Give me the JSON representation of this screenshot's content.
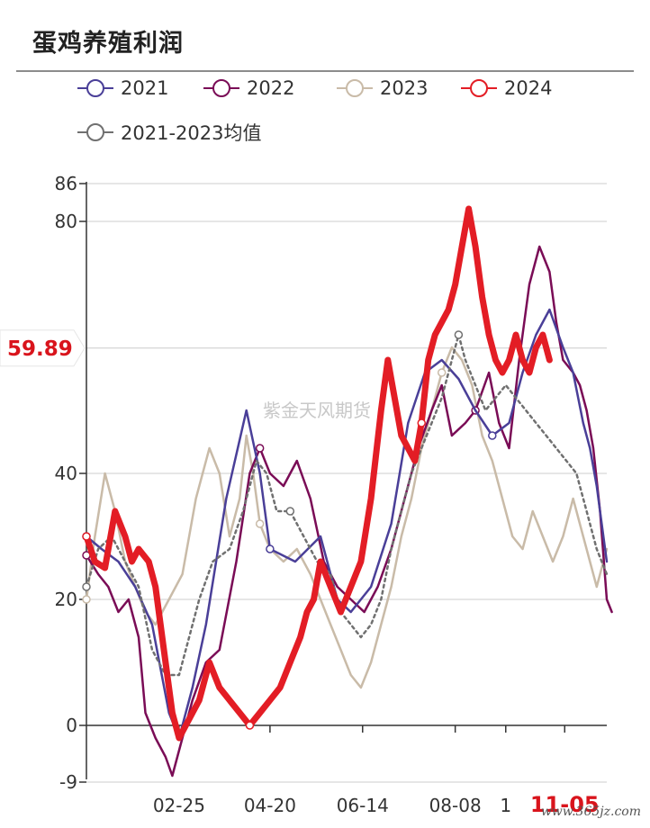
{
  "header": {
    "title": "蛋鸡养殖利润"
  },
  "watermark": "紫金天风期货",
  "site_mark": "www.365jz.com",
  "colors": {
    "s2021": "#4a3f98",
    "s2022": "#7a0c56",
    "s2023": "#c9bba8",
    "s2024": "#e31d25",
    "avg": "#707070",
    "highlight": "#d9141c"
  },
  "chart_data": {
    "type": "line",
    "title": "蛋鸡养殖利润",
    "xlabel": "",
    "ylabel": "",
    "ylim": [
      -9,
      86
    ],
    "yticks": [
      -9,
      0,
      20,
      40,
      80,
      86
    ],
    "highlight_value": "59.89",
    "highlight_y": 59.89,
    "xlim": [
      1,
      310
    ],
    "xticks": [
      {
        "label": "02-25",
        "x": 56
      },
      {
        "label": "04-20",
        "x": 110
      },
      {
        "label": "06-14",
        "x": 165
      },
      {
        "label": "08-08",
        "x": 220
      },
      {
        "label": "1",
        "x": 250
      },
      {
        "label": "11-05",
        "x": 285,
        "highlight": true
      }
    ],
    "grid": true,
    "legend_position": "top-left",
    "series": [
      {
        "name": "2021",
        "points": [
          [
            1,
            30
          ],
          [
            10,
            28
          ],
          [
            20,
            26
          ],
          [
            30,
            22
          ],
          [
            40,
            16
          ],
          [
            50,
            2
          ],
          [
            56,
            -2
          ],
          [
            64,
            6
          ],
          [
            72,
            16
          ],
          [
            84,
            36
          ],
          [
            96,
            50
          ],
          [
            104,
            40
          ],
          [
            110,
            28
          ],
          [
            125,
            26
          ],
          [
            140,
            30
          ],
          [
            150,
            20
          ],
          [
            158,
            18
          ],
          [
            170,
            22
          ],
          [
            182,
            32
          ],
          [
            192,
            48
          ],
          [
            202,
            56
          ],
          [
            212,
            58
          ],
          [
            222,
            55
          ],
          [
            232,
            50
          ],
          [
            242,
            46
          ],
          [
            252,
            48
          ],
          [
            260,
            56
          ],
          [
            268,
            62
          ],
          [
            276,
            66
          ],
          [
            284,
            60
          ],
          [
            290,
            56
          ],
          [
            296,
            48
          ],
          [
            300,
            44
          ],
          [
            304,
            38
          ],
          [
            306,
            34
          ],
          [
            310,
            26
          ]
        ]
      },
      {
        "name": "2022",
        "points": [
          [
            1,
            27
          ],
          [
            8,
            24
          ],
          [
            14,
            22
          ],
          [
            20,
            18
          ],
          [
            26,
            20
          ],
          [
            32,
            14
          ],
          [
            36,
            2
          ],
          [
            42,
            -2
          ],
          [
            48,
            -5
          ],
          [
            52,
            -8
          ],
          [
            58,
            -2
          ],
          [
            64,
            4
          ],
          [
            72,
            10
          ],
          [
            80,
            12
          ],
          [
            90,
            26
          ],
          [
            98,
            40
          ],
          [
            104,
            44
          ],
          [
            110,
            40
          ],
          [
            118,
            38
          ],
          [
            126,
            42
          ],
          [
            134,
            36
          ],
          [
            142,
            26
          ],
          [
            150,
            22
          ],
          [
            158,
            20
          ],
          [
            166,
            18
          ],
          [
            174,
            22
          ],
          [
            182,
            28
          ],
          [
            190,
            36
          ],
          [
            198,
            44
          ],
          [
            206,
            50
          ],
          [
            212,
            54
          ],
          [
            218,
            46
          ],
          [
            226,
            48
          ],
          [
            232,
            50
          ],
          [
            240,
            56
          ],
          [
            246,
            48
          ],
          [
            252,
            44
          ],
          [
            258,
            58
          ],
          [
            264,
            70
          ],
          [
            270,
            76
          ],
          [
            276,
            72
          ],
          [
            280,
            64
          ],
          [
            284,
            58
          ],
          [
            290,
            56
          ],
          [
            294,
            54
          ],
          [
            298,
            50
          ],
          [
            302,
            44
          ],
          [
            306,
            34
          ],
          [
            310,
            20
          ],
          [
            313,
            18
          ]
        ]
      },
      {
        "name": "2023",
        "points": [
          [
            1,
            20
          ],
          [
            6,
            30
          ],
          [
            12,
            40
          ],
          [
            18,
            34
          ],
          [
            24,
            26
          ],
          [
            30,
            22
          ],
          [
            36,
            18
          ],
          [
            42,
            16
          ],
          [
            50,
            20
          ],
          [
            58,
            24
          ],
          [
            66,
            36
          ],
          [
            74,
            44
          ],
          [
            80,
            40
          ],
          [
            86,
            30
          ],
          [
            92,
            36
          ],
          [
            96,
            46
          ],
          [
            100,
            40
          ],
          [
            104,
            32
          ],
          [
            110,
            28
          ],
          [
            118,
            26
          ],
          [
            126,
            28
          ],
          [
            134,
            24
          ],
          [
            140,
            20
          ],
          [
            146,
            16
          ],
          [
            152,
            12
          ],
          [
            158,
            8
          ],
          [
            164,
            6
          ],
          [
            170,
            10
          ],
          [
            176,
            16
          ],
          [
            182,
            22
          ],
          [
            188,
            30
          ],
          [
            194,
            36
          ],
          [
            200,
            44
          ],
          [
            206,
            50
          ],
          [
            212,
            56
          ],
          [
            218,
            60
          ],
          [
            224,
            58
          ],
          [
            230,
            54
          ],
          [
            236,
            46
          ],
          [
            242,
            42
          ],
          [
            248,
            36
          ],
          [
            254,
            30
          ],
          [
            260,
            28
          ],
          [
            266,
            34
          ],
          [
            272,
            30
          ],
          [
            278,
            26
          ],
          [
            284,
            30
          ],
          [
            290,
            36
          ],
          [
            296,
            30
          ],
          [
            300,
            26
          ],
          [
            304,
            22
          ],
          [
            310,
            28
          ]
        ]
      },
      {
        "name": "2024",
        "points": [
          [
            1,
            30
          ],
          [
            6,
            26
          ],
          [
            12,
            25
          ],
          [
            18,
            34
          ],
          [
            24,
            30
          ],
          [
            28,
            26
          ],
          [
            32,
            28
          ],
          [
            38,
            26
          ],
          [
            42,
            22
          ],
          [
            48,
            10
          ],
          [
            52,
            2
          ],
          [
            56,
            -2
          ],
          [
            60,
            0
          ],
          [
            64,
            2
          ],
          [
            68,
            4
          ],
          [
            74,
            10
          ],
          [
            80,
            6
          ],
          [
            86,
            4
          ],
          [
            92,
            2
          ],
          [
            98,
            0
          ],
          [
            104,
            2
          ],
          [
            110,
            4
          ],
          [
            116,
            6
          ],
          [
            122,
            10
          ],
          [
            128,
            14
          ],
          [
            132,
            18
          ],
          [
            136,
            20
          ],
          [
            140,
            26
          ],
          [
            146,
            22
          ],
          [
            152,
            18
          ],
          [
            158,
            22
          ],
          [
            164,
            26
          ],
          [
            170,
            36
          ],
          [
            176,
            50
          ],
          [
            180,
            58
          ],
          [
            184,
            52
          ],
          [
            188,
            46
          ],
          [
            192,
            44
          ],
          [
            196,
            42
          ],
          [
            200,
            48
          ],
          [
            204,
            58
          ],
          [
            208,
            62
          ],
          [
            212,
            64
          ],
          [
            216,
            66
          ],
          [
            220,
            70
          ],
          [
            224,
            76
          ],
          [
            228,
            82
          ],
          [
            232,
            76
          ],
          [
            236,
            68
          ],
          [
            240,
            62
          ],
          [
            244,
            58
          ],
          [
            248,
            56
          ],
          [
            252,
            58
          ],
          [
            256,
            62
          ],
          [
            260,
            58
          ],
          [
            264,
            56
          ],
          [
            268,
            60
          ],
          [
            272,
            62
          ],
          [
            276,
            58
          ]
        ]
      },
      {
        "name": "2021-2023均值",
        "dashed": true,
        "points": [
          [
            1,
            22
          ],
          [
            8,
            28
          ],
          [
            16,
            30
          ],
          [
            24,
            26
          ],
          [
            32,
            22
          ],
          [
            40,
            12
          ],
          [
            48,
            8
          ],
          [
            56,
            8
          ],
          [
            62,
            14
          ],
          [
            68,
            20
          ],
          [
            76,
            26
          ],
          [
            86,
            28
          ],
          [
            94,
            34
          ],
          [
            102,
            42
          ],
          [
            108,
            40
          ],
          [
            114,
            34
          ],
          [
            122,
            34
          ],
          [
            130,
            30
          ],
          [
            138,
            26
          ],
          [
            146,
            24
          ],
          [
            152,
            18
          ],
          [
            158,
            16
          ],
          [
            164,
            14
          ],
          [
            170,
            16
          ],
          [
            176,
            20
          ],
          [
            182,
            28
          ],
          [
            188,
            34
          ],
          [
            194,
            40
          ],
          [
            200,
            44
          ],
          [
            206,
            48
          ],
          [
            212,
            52
          ],
          [
            218,
            58
          ],
          [
            222,
            62
          ],
          [
            226,
            58
          ],
          [
            232,
            54
          ],
          [
            238,
            50
          ],
          [
            244,
            52
          ],
          [
            250,
            54
          ],
          [
            256,
            52
          ],
          [
            262,
            50
          ],
          [
            268,
            48
          ],
          [
            274,
            46
          ],
          [
            280,
            44
          ],
          [
            286,
            42
          ],
          [
            292,
            40
          ],
          [
            298,
            34
          ],
          [
            304,
            28
          ],
          [
            310,
            24
          ]
        ]
      }
    ]
  }
}
